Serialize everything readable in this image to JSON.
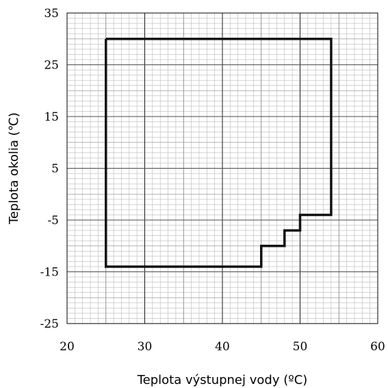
{
  "chart_data": {
    "type": "line",
    "title": "",
    "xlabel": "Teplota výstupnej vody (ºC)",
    "ylabel": "Teplota okolia (℃)",
    "xlim": [
      20,
      60
    ],
    "ylim": [
      -25,
      35
    ],
    "x_ticks": [
      20,
      30,
      40,
      50,
      60
    ],
    "y_ticks": [
      -25,
      -15,
      -5,
      5,
      15,
      25,
      35
    ],
    "x_tick_labels": [
      "20",
      "30",
      "40",
      "50",
      "60"
    ],
    "y_tick_labels": [
      "-25",
      "-15",
      "-5",
      "5",
      "15",
      "25",
      "35"
    ],
    "grid": true,
    "series": [
      {
        "x": [
          25,
          54,
          54,
          50,
          50,
          48,
          48,
          45,
          45,
          25,
          25
        ],
        "y": [
          30,
          30,
          -4,
          -4,
          -7,
          -7,
          -10,
          -10,
          -14,
          -14,
          30
        ]
      }
    ]
  }
}
